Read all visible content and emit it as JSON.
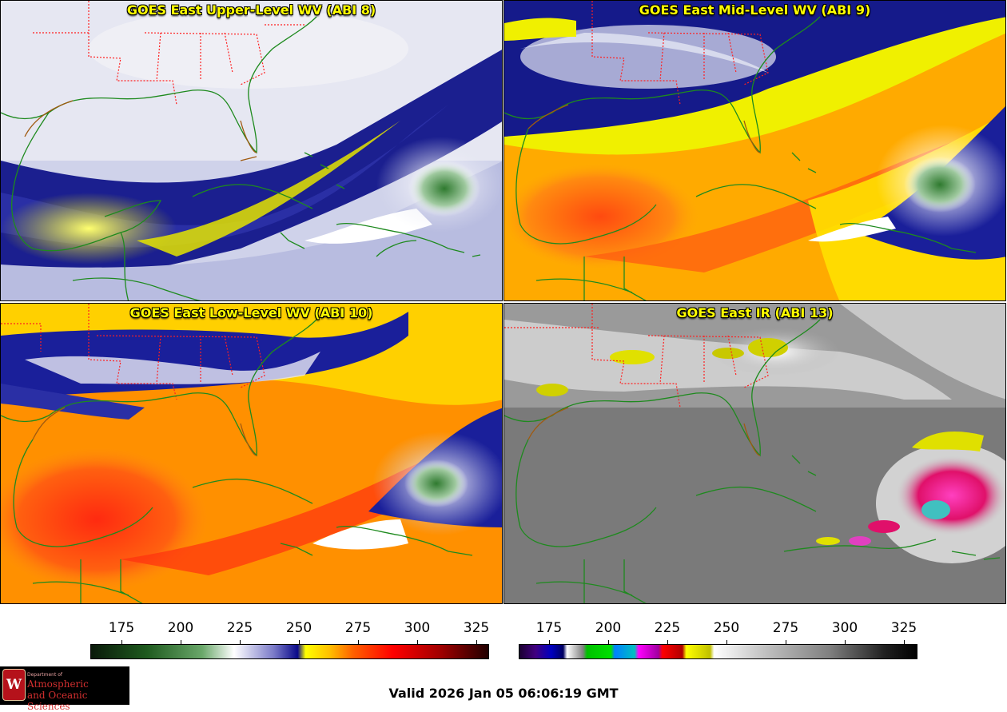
{
  "panels": [
    {
      "title": "GOES East Upper-Level WV (ABI 8)"
    },
    {
      "title": "GOES East Mid-Level WV (ABI 9)"
    },
    {
      "title": "GOES East Low-Level WV (ABI 10)"
    },
    {
      "title": "GOES East IR (ABI 13)"
    }
  ],
  "colorbars": {
    "wv_ticks": [
      "175",
      "200",
      "225",
      "250",
      "275",
      "300",
      "325"
    ],
    "ir_ticks": [
      "175",
      "200",
      "225",
      "250",
      "275",
      "300",
      "325"
    ]
  },
  "valid_time": "Valid 2026 Jan 05 06:06:19 GMT",
  "logo": {
    "dept": "Department of",
    "line1": "Atmospheric",
    "line2": "and Oceanic Sciences",
    "seal_letter": "W"
  },
  "colors": {
    "title_yellow": "#ffff00",
    "border_red": "#ff2020",
    "coast_green": "#1e8a1e",
    "logo_red": "#d32f2f"
  }
}
